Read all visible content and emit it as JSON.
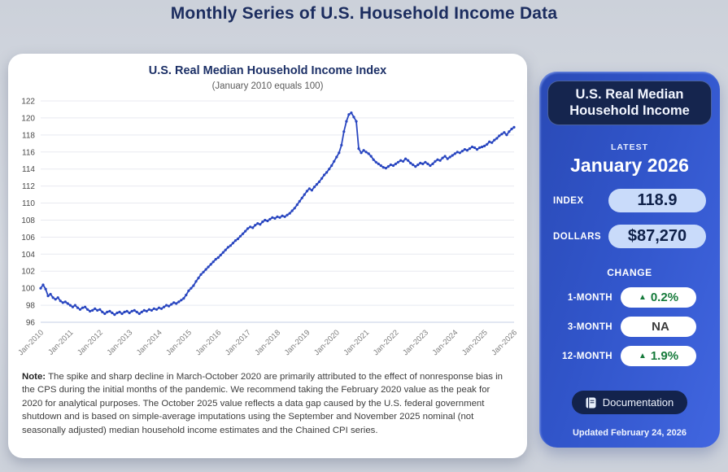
{
  "page": {
    "title": "Monthly Series of U.S. Household Income Data"
  },
  "chart_card": {
    "title": "U.S. Real Median Household Income Index",
    "subtitle": "(January 2010 equals 100)",
    "note_label": "Note:",
    "note_text": " The spike and sharp decline in March-October 2020 are primarily attributed to the effect of nonresponse bias in the CPS during the initial months of the pandemic. We recommend taking the February 2020 value as the peak for 2020 for analytical purposes. The October 2025 value reflects a data gap caused by the U.S. federal government shutdown and is based on simple-average imputations using the September and November 2025 nominal (not seasonally adjusted) median household income estimates and the Chained CPI series."
  },
  "chart_data": {
    "type": "line",
    "title": "U.S. Real Median Household Income Index",
    "subtitle": "(January 2010 equals 100)",
    "xlabel": "",
    "ylabel": "",
    "ylim": [
      96,
      122
    ],
    "y_ticks": [
      96,
      98,
      100,
      102,
      104,
      106,
      108,
      110,
      112,
      114,
      116,
      118,
      120,
      122
    ],
    "x_tick_labels": [
      "Jan-2010",
      "Jan-2011",
      "Jan-2012",
      "Jan-2013",
      "Jan-2014",
      "Jan-2015",
      "Jan-2016",
      "Jan-2017",
      "Jan-2018",
      "Jan-2019",
      "Jan-2020",
      "Jan-2021",
      "Jan-2022",
      "Jan-2023",
      "Jan-2024",
      "Jan-2025",
      "Jan-2026"
    ],
    "frequency": "monthly",
    "x_start": "2010-01",
    "x_end": "2026-01",
    "grid": "horizontal",
    "legend": "none",
    "series": [
      {
        "name": "U.S. Real Median Household Income Index",
        "color": "#2946c0",
        "values": [
          100.0,
          100.4,
          99.9,
          99.1,
          99.3,
          98.9,
          98.7,
          98.9,
          98.5,
          98.3,
          98.4,
          98.2,
          98.0,
          97.8,
          98.0,
          97.7,
          97.5,
          97.7,
          97.8,
          97.5,
          97.3,
          97.4,
          97.6,
          97.4,
          97.5,
          97.2,
          97.0,
          97.2,
          97.3,
          97.1,
          96.9,
          97.1,
          97.2,
          97.0,
          97.2,
          97.3,
          97.1,
          97.3,
          97.4,
          97.2,
          97.0,
          97.2,
          97.4,
          97.3,
          97.5,
          97.4,
          97.6,
          97.5,
          97.7,
          97.6,
          97.8,
          98.0,
          97.9,
          98.1,
          98.3,
          98.2,
          98.4,
          98.6,
          98.8,
          99.2,
          99.7,
          100.0,
          100.3,
          100.8,
          101.2,
          101.6,
          101.9,
          102.2,
          102.5,
          102.8,
          103.1,
          103.4,
          103.6,
          103.9,
          104.2,
          104.5,
          104.8,
          105.0,
          105.3,
          105.6,
          105.8,
          106.1,
          106.4,
          106.7,
          107.0,
          107.2,
          107.1,
          107.4,
          107.6,
          107.5,
          107.8,
          108.0,
          107.9,
          108.1,
          108.3,
          108.2,
          108.4,
          108.3,
          108.5,
          108.4,
          108.6,
          108.8,
          109.1,
          109.4,
          109.8,
          110.2,
          110.6,
          111.0,
          111.4,
          111.7,
          111.5,
          111.9,
          112.2,
          112.5,
          112.9,
          113.3,
          113.6,
          114.0,
          114.4,
          114.9,
          115.4,
          115.9,
          116.8,
          118.4,
          119.6,
          120.4,
          120.6,
          120.1,
          119.6,
          116.4,
          115.9,
          116.2,
          116.0,
          115.8,
          115.5,
          115.1,
          114.8,
          114.6,
          114.4,
          114.2,
          114.1,
          114.3,
          114.5,
          114.4,
          114.6,
          114.8,
          115.0,
          114.9,
          115.2,
          115.0,
          114.7,
          114.5,
          114.3,
          114.5,
          114.7,
          114.6,
          114.8,
          114.6,
          114.4,
          114.6,
          114.9,
          115.1,
          115.0,
          115.3,
          115.5,
          115.2,
          115.4,
          115.6,
          115.8,
          116.0,
          115.9,
          116.1,
          116.3,
          116.2,
          116.4,
          116.6,
          116.5,
          116.3,
          116.5,
          116.6,
          116.7,
          116.9,
          117.2,
          117.1,
          117.4,
          117.6,
          117.9,
          118.1,
          118.3,
          118.0,
          118.4,
          118.7,
          118.9
        ]
      }
    ],
    "annotation": "Spike and sharp decline March-October 2020 due to nonresponse bias; October 2025 value imputed due to federal government shutdown data gap"
  },
  "panel": {
    "title": "U.S. Real Median Household Income",
    "latest_label": "LATEST",
    "latest_value": "January 2026",
    "stats": [
      {
        "label": "INDEX",
        "value": "118.9"
      },
      {
        "label": "DOLLARS",
        "value": "$87,270"
      }
    ],
    "change_label": "CHANGE",
    "changes": [
      {
        "label": "1-MONTH",
        "arrow": "▲",
        "value": "0.2%",
        "color": "#157a3a"
      },
      {
        "label": "3-MONTH",
        "arrow": "",
        "value": "NA",
        "color": "#3a3a3a"
      },
      {
        "label": "12-MONTH",
        "arrow": "▲",
        "value": "1.9%",
        "color": "#157a3a"
      }
    ],
    "doc_button": "Documentation",
    "updated": "Updated February 24, 2026",
    "colors": {
      "panel_gradient_start": "#2a4ab6",
      "panel_gradient_end": "#4166e0",
      "header_box": "#15254e",
      "stat_pill_bg": "#c9dbfa",
      "change_up": "#157a3a",
      "line": "#2946c0"
    }
  }
}
